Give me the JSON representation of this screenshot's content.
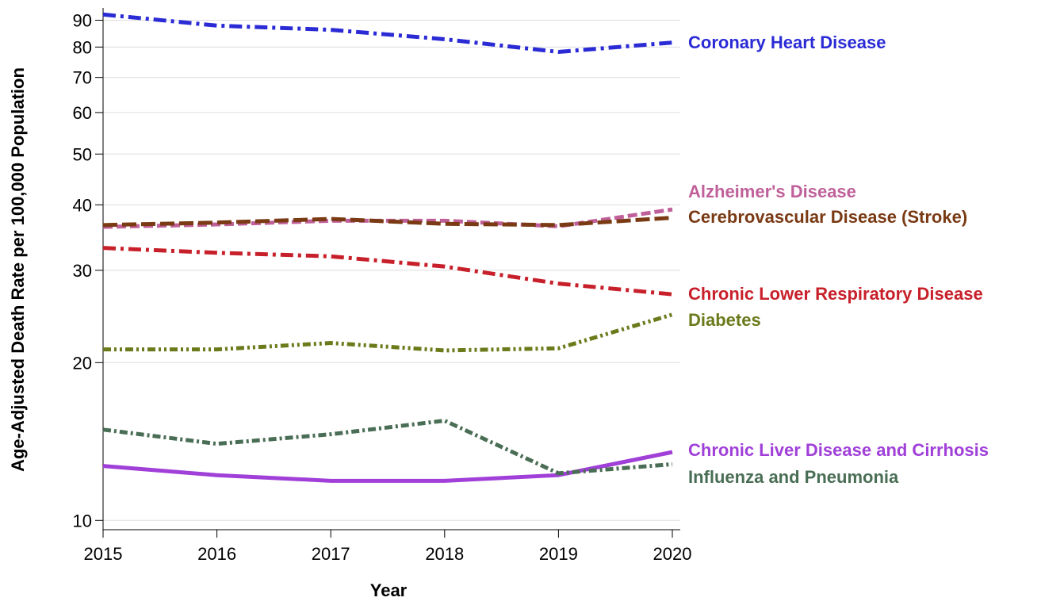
{
  "chart_data": {
    "type": "line",
    "xlabel": "Year",
    "ylabel": "Age-Adjusted Death Rate per 100,000 Population",
    "x": [
      2015,
      2016,
      2017,
      2018,
      2019,
      2020
    ],
    "xlim": [
      2015,
      2020
    ],
    "xticks": [
      2015,
      2016,
      2017,
      2018,
      2019,
      2020
    ],
    "yscale": "log",
    "ylim": [
      9.6,
      95
    ],
    "yticks": [
      10,
      20,
      30,
      40,
      50,
      60,
      70,
      80,
      90
    ],
    "grid": true,
    "series": [
      {
        "name": "Coronary Heart Disease",
        "color": "#2b2bd6",
        "values": [
          92.3,
          87.9,
          86.3,
          82.8,
          78.3,
          81.6
        ]
      },
      {
        "name": "Alzheimer's Disease",
        "color": "#c0609a",
        "values": [
          36.3,
          36.7,
          37.3,
          37.3,
          36.4,
          39.2
        ]
      },
      {
        "name": "Cerebrovascular Disease (Stroke)",
        "color": "#7a3a14",
        "values": [
          36.6,
          37.0,
          37.6,
          36.8,
          36.6,
          37.8
        ]
      },
      {
        "name": "Chronic Lower Respiratory Disease",
        "color": "#c8202a",
        "values": [
          33.1,
          32.4,
          31.9,
          30.5,
          28.3,
          27.0
        ]
      },
      {
        "name": "Diabetes",
        "color": "#6b7a1a",
        "values": [
          21.2,
          21.2,
          21.8,
          21.1,
          21.3,
          24.7
        ]
      },
      {
        "name": "Chronic Liver Disease and Cirrhosis",
        "color": "#a040d8",
        "values": [
          12.7,
          12.2,
          11.9,
          11.9,
          12.2,
          13.5
        ]
      },
      {
        "name": "Influenza and Pneumonia",
        "color": "#4a6e55",
        "values": [
          14.9,
          14.0,
          14.6,
          15.5,
          12.3,
          12.8
        ]
      }
    ]
  }
}
